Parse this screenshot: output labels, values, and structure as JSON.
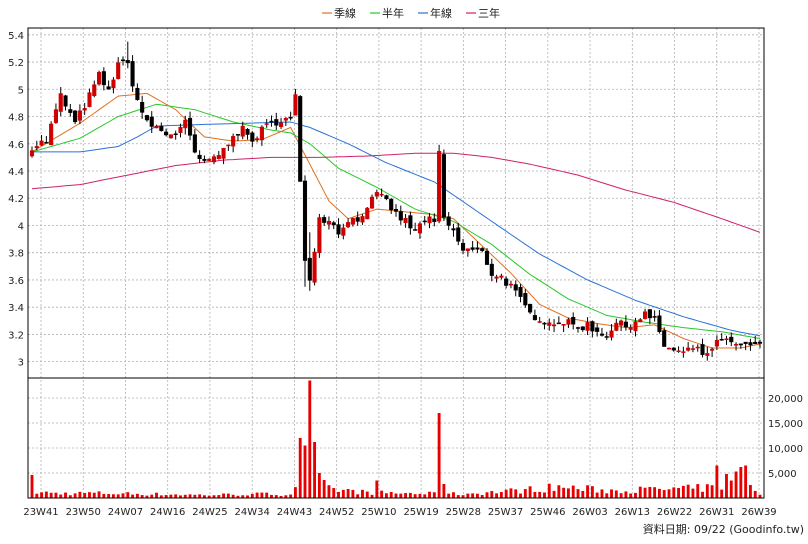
{
  "chart_data": {
    "type": "candlestick",
    "legend": {
      "placement": "top-center",
      "items": [
        {
          "label": "季線",
          "color": "#e07020"
        },
        {
          "label": "半年",
          "color": "#28c828"
        },
        {
          "label": "年線",
          "color": "#2a72d8"
        },
        {
          "label": "三年",
          "color": "#d0206a"
        }
      ]
    },
    "price_axis": {
      "ylim": [
        2.88,
        5.45
      ],
      "ticks": [
        "3",
        "3.2",
        "3.4",
        "3.6",
        "3.8",
        "4",
        "4.2",
        "4.4",
        "4.6",
        "4.8",
        "5",
        "5.2",
        "5.4"
      ]
    },
    "volume_axis": {
      "ylim": [
        0,
        24000
      ],
      "ticks": [
        "5,000",
        "10,000",
        "15,000",
        "20,000"
      ]
    },
    "x_ticks": [
      "23W41",
      "23W50",
      "24W07",
      "24W16",
      "24W25",
      "24W34",
      "24W43",
      "24W52",
      "25W10",
      "25W19",
      "25W28",
      "25W37",
      "25W46",
      "26W03",
      "26W13",
      "26W22",
      "26W31",
      "26W39"
    ],
    "grid": true,
    "colors": {
      "up": "#d00000",
      "down": "#000000",
      "volume": "#e80000",
      "grid": "#b0b0b0",
      "background": "#ffffff"
    },
    "anchors": {
      "close": [
        [
          0,
          4.58
        ],
        [
          3,
          4.62
        ],
        [
          6,
          4.95
        ],
        [
          9,
          4.75
        ],
        [
          12,
          4.95
        ],
        [
          14,
          5.1
        ],
        [
          16,
          4.98
        ],
        [
          18,
          5.2
        ],
        [
          20,
          5.18
        ],
        [
          22,
          4.92
        ],
        [
          24,
          4.75
        ],
        [
          26,
          4.72
        ],
        [
          28,
          4.67
        ],
        [
          30,
          4.68
        ],
        [
          32,
          4.75
        ],
        [
          34,
          4.53
        ],
        [
          36,
          4.45
        ],
        [
          38,
          4.5
        ],
        [
          40,
          4.55
        ],
        [
          42,
          4.68
        ],
        [
          44,
          4.7
        ],
        [
          46,
          4.62
        ],
        [
          48,
          4.7
        ],
        [
          50,
          4.75
        ],
        [
          52,
          4.78
        ],
        [
          54,
          4.78
        ],
        [
          55,
          4.95
        ],
        [
          56,
          4.3
        ],
        [
          57,
          3.75
        ],
        [
          58,
          3.62
        ],
        [
          60,
          4.05
        ],
        [
          62,
          4.05
        ],
        [
          64,
          3.95
        ],
        [
          66,
          4.05
        ],
        [
          68,
          4.03
        ],
        [
          70,
          4.15
        ],
        [
          72,
          4.22
        ],
        [
          74,
          4.18
        ],
        [
          76,
          4.08
        ],
        [
          78,
          4.03
        ],
        [
          80,
          3.95
        ],
        [
          82,
          4.05
        ],
        [
          84,
          4.02
        ],
        [
          85,
          4.52
        ],
        [
          86,
          4.05
        ],
        [
          88,
          3.95
        ],
        [
          90,
          3.82
        ],
        [
          92,
          3.82
        ],
        [
          94,
          3.8
        ],
        [
          96,
          3.65
        ],
        [
          98,
          3.62
        ],
        [
          100,
          3.55
        ],
        [
          102,
          3.45
        ],
        [
          104,
          3.35
        ],
        [
          106,
          3.32
        ],
        [
          108,
          3.28
        ],
        [
          110,
          3.3
        ],
        [
          112,
          3.28
        ],
        [
          114,
          3.25
        ],
        [
          116,
          3.27
        ],
        [
          118,
          3.22
        ],
        [
          120,
          3.2
        ],
        [
          122,
          3.28
        ],
        [
          124,
          3.26
        ],
        [
          126,
          3.3
        ],
        [
          128,
          3.35
        ],
        [
          130,
          3.3
        ],
        [
          132,
          3.12
        ],
        [
          134,
          3.08
        ],
        [
          136,
          3.06
        ],
        [
          138,
          3.1
        ],
        [
          140,
          3.06
        ],
        [
          142,
          3.08
        ],
        [
          144,
          3.18
        ],
        [
          146,
          3.12
        ],
        [
          148,
          3.12
        ],
        [
          150,
          3.1
        ],
        [
          152,
          3.14
        ]
      ],
      "q": [
        [
          0,
          4.54
        ],
        [
          10,
          4.75
        ],
        [
          18,
          4.95
        ],
        [
          24,
          4.97
        ],
        [
          30,
          4.85
        ],
        [
          36,
          4.65
        ],
        [
          42,
          4.62
        ],
        [
          48,
          4.63
        ],
        [
          54,
          4.72
        ],
        [
          58,
          4.45
        ],
        [
          62,
          4.18
        ],
        [
          66,
          4.05
        ],
        [
          72,
          4.12
        ],
        [
          78,
          4.1
        ],
        [
          84,
          4.08
        ],
        [
          88,
          4.05
        ],
        [
          94,
          3.85
        ],
        [
          100,
          3.65
        ],
        [
          106,
          3.42
        ],
        [
          112,
          3.32
        ],
        [
          118,
          3.28
        ],
        [
          124,
          3.25
        ],
        [
          130,
          3.27
        ],
        [
          136,
          3.17
        ],
        [
          142,
          3.1
        ],
        [
          148,
          3.1
        ],
        [
          152,
          3.13
        ]
      ],
      "h": [
        [
          0,
          4.54
        ],
        [
          10,
          4.64
        ],
        [
          18,
          4.8
        ],
        [
          26,
          4.89
        ],
        [
          34,
          4.85
        ],
        [
          42,
          4.76
        ],
        [
          50,
          4.7
        ],
        [
          54,
          4.68
        ],
        [
          58,
          4.6
        ],
        [
          64,
          4.42
        ],
        [
          72,
          4.28
        ],
        [
          80,
          4.12
        ],
        [
          88,
          4.03
        ],
        [
          96,
          3.86
        ],
        [
          104,
          3.64
        ],
        [
          112,
          3.46
        ],
        [
          120,
          3.34
        ],
        [
          128,
          3.29
        ],
        [
          136,
          3.25
        ],
        [
          144,
          3.22
        ],
        [
          152,
          3.17
        ]
      ],
      "y": [
        [
          0,
          4.54
        ],
        [
          10,
          4.54
        ],
        [
          18,
          4.58
        ],
        [
          22,
          4.65
        ],
        [
          26,
          4.73
        ],
        [
          34,
          4.74
        ],
        [
          44,
          4.75
        ],
        [
          54,
          4.76
        ],
        [
          58,
          4.72
        ],
        [
          66,
          4.6
        ],
        [
          74,
          4.46
        ],
        [
          84,
          4.32
        ],
        [
          96,
          4.03
        ],
        [
          106,
          3.79
        ],
        [
          116,
          3.6
        ],
        [
          126,
          3.45
        ],
        [
          136,
          3.33
        ],
        [
          146,
          3.23
        ],
        [
          152,
          3.19
        ]
      ],
      "t": [
        [
          0,
          4.27
        ],
        [
          10,
          4.3
        ],
        [
          20,
          4.37
        ],
        [
          30,
          4.44
        ],
        [
          40,
          4.48
        ],
        [
          50,
          4.5
        ],
        [
          60,
          4.5
        ],
        [
          70,
          4.51
        ],
        [
          80,
          4.53
        ],
        [
          88,
          4.53
        ],
        [
          96,
          4.5
        ],
        [
          104,
          4.45
        ],
        [
          114,
          4.37
        ],
        [
          124,
          4.26
        ],
        [
          134,
          4.17
        ],
        [
          144,
          4.05
        ],
        [
          152,
          3.95
        ]
      ],
      "vol": [
        [
          0,
          1200
        ],
        [
          6,
          900
        ],
        [
          12,
          1000
        ],
        [
          18,
          900
        ],
        [
          24,
          800
        ],
        [
          30,
          700
        ],
        [
          36,
          600
        ],
        [
          42,
          700
        ],
        [
          48,
          800
        ],
        [
          54,
          700
        ],
        [
          56,
          5000
        ],
        [
          57,
          10000
        ],
        [
          58,
          13000
        ],
        [
          60,
          3500
        ],
        [
          62,
          1800
        ],
        [
          70,
          1100
        ],
        [
          80,
          900
        ],
        [
          90,
          800
        ],
        [
          100,
          1400
        ],
        [
          110,
          2200
        ],
        [
          120,
          1500
        ],
        [
          130,
          1700
        ],
        [
          136,
          1800
        ],
        [
          140,
          2000
        ],
        [
          144,
          2200
        ],
        [
          148,
          3300
        ],
        [
          152,
          900
        ]
      ]
    },
    "spikes": [
      [
        0,
        4600
      ],
      [
        56,
        12000
      ],
      [
        57,
        10500
      ],
      [
        58,
        23500
      ],
      [
        59,
        11200
      ],
      [
        60,
        5000
      ],
      [
        72,
        3500
      ],
      [
        85,
        17000
      ],
      [
        86,
        2800
      ],
      [
        143,
        6500
      ],
      [
        145,
        4800
      ],
      [
        147,
        5300
      ],
      [
        148,
        6200
      ],
      [
        149,
        6500
      ],
      [
        150,
        2600
      ]
    ],
    "footer": "資料日期: 09/22  (Goodinfo.tw)"
  }
}
